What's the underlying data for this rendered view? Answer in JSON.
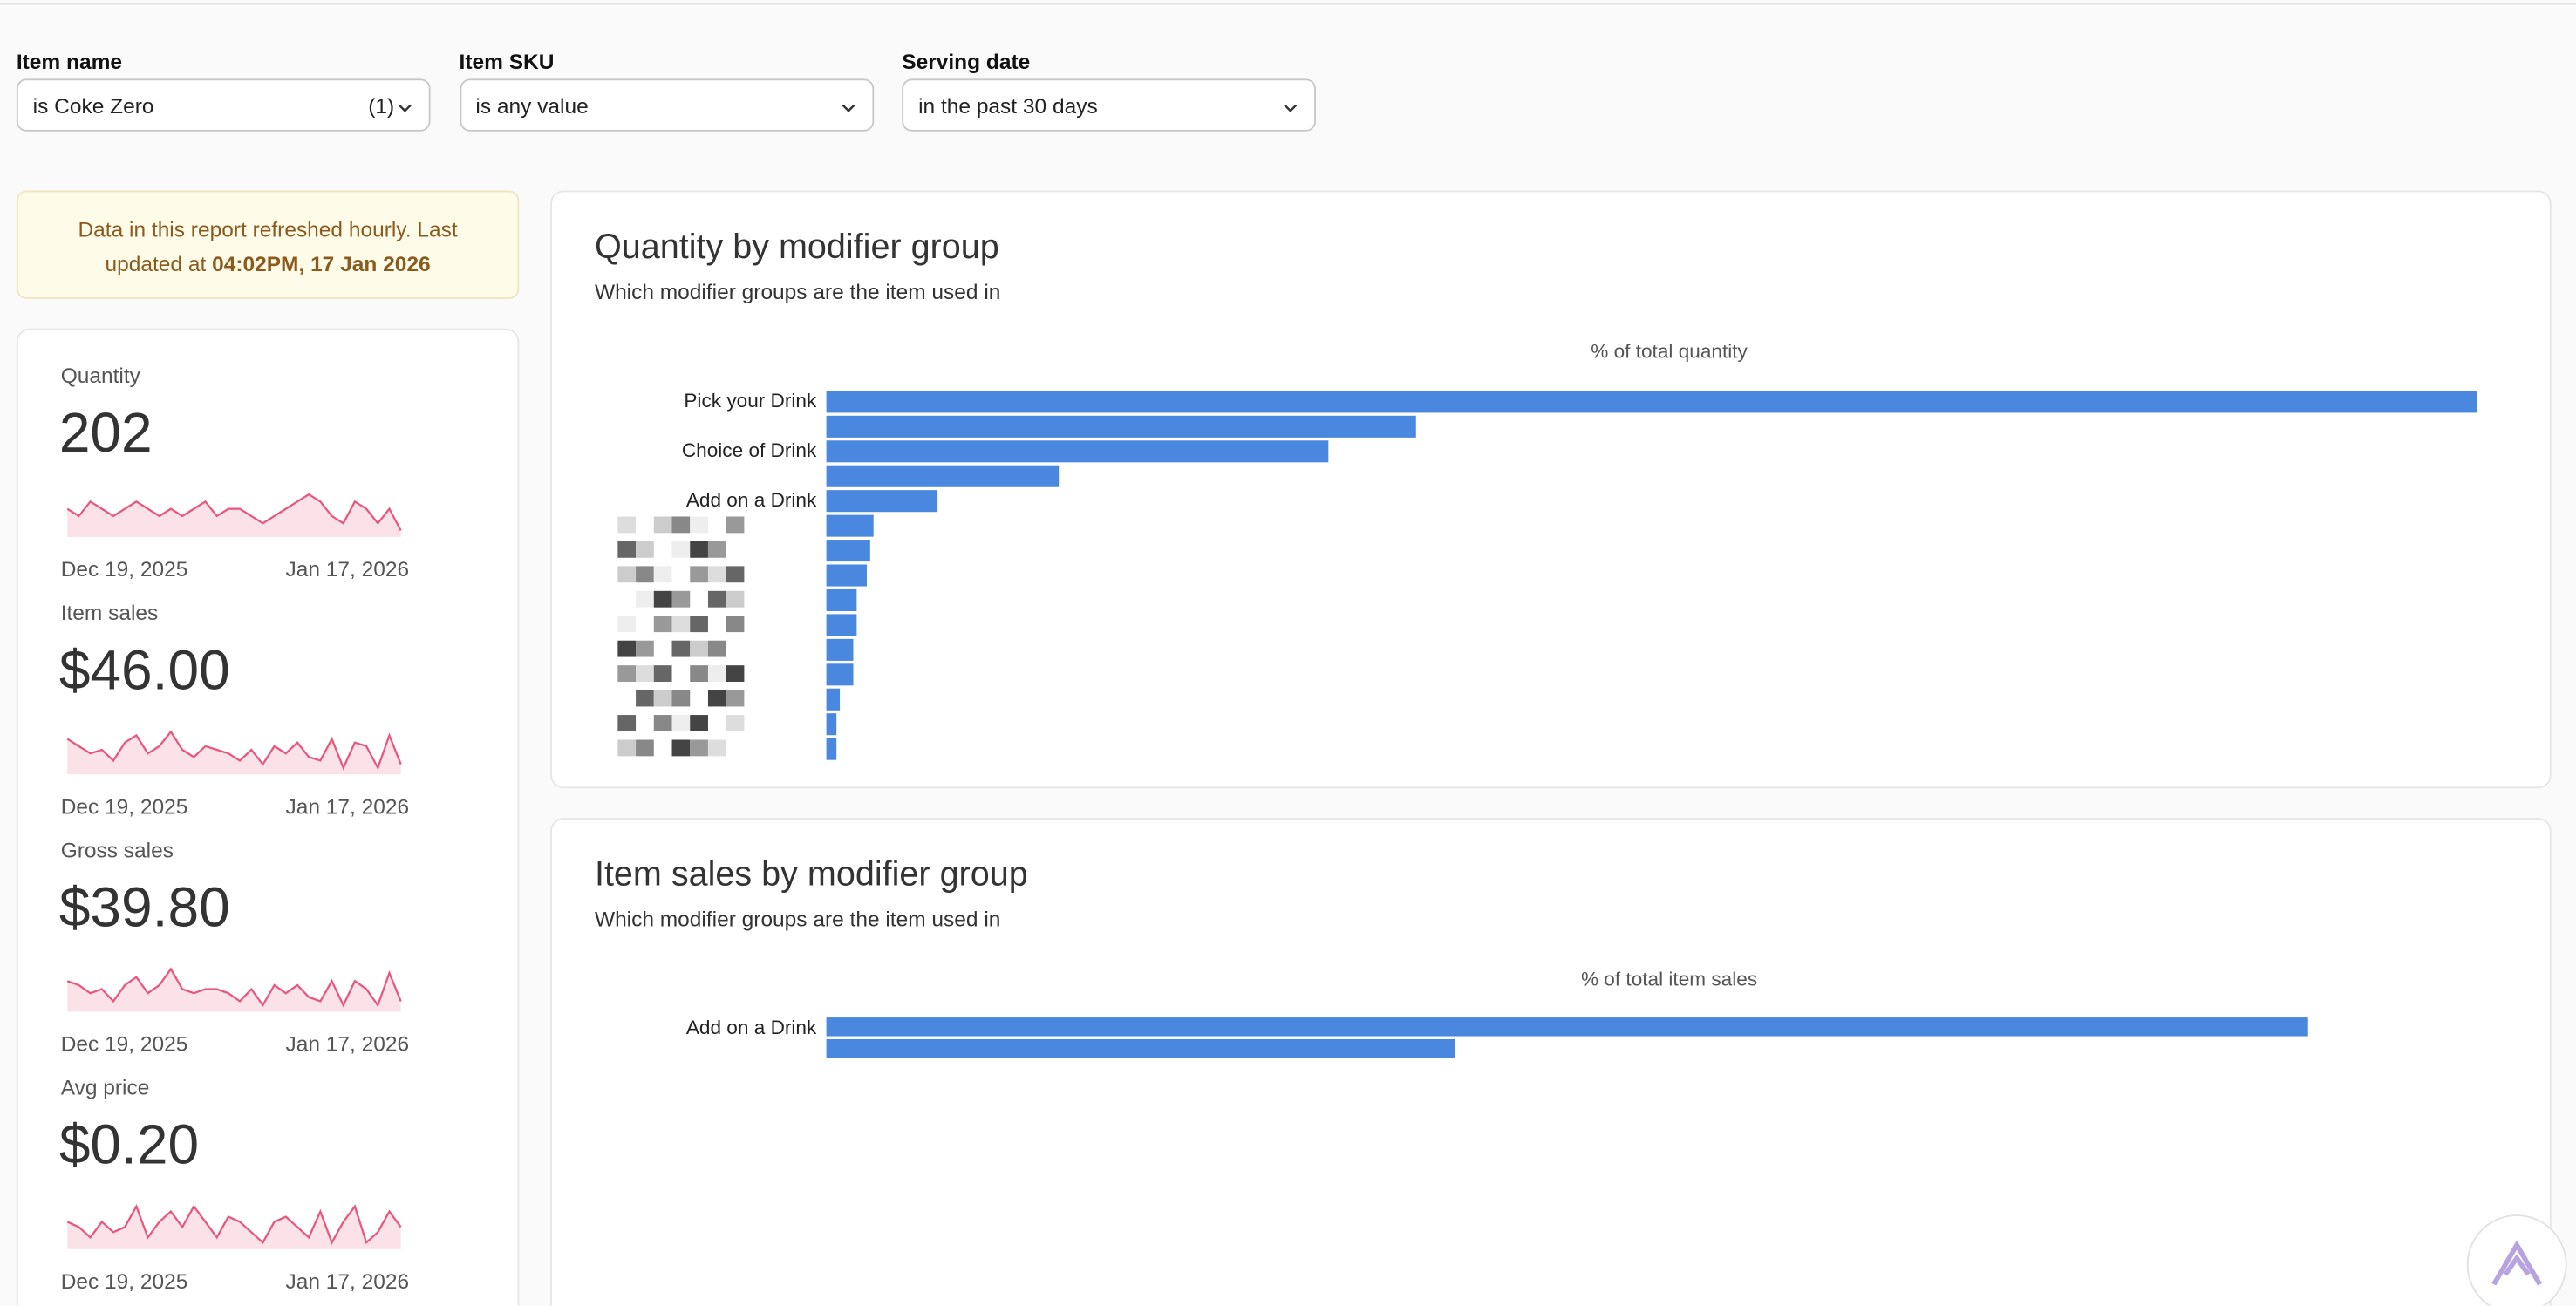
{
  "filters": [
    {
      "label": "Item name",
      "value": "is Coke Zero",
      "count": "(1)"
    },
    {
      "label": "Item SKU",
      "value": "is any value"
    },
    {
      "label": "Serving date",
      "value": "in the past 30 days"
    }
  ],
  "notice": {
    "text": "Data in this report refreshed hourly. Last updated at ",
    "time": "04:02PM, 17 Jan 2026"
  },
  "metrics": [
    {
      "label": "Quantity",
      "value": "202",
      "start": "Dec 19, 2025",
      "end": "Jan 17, 2026",
      "trend": [
        7,
        6,
        8,
        7,
        6,
        7,
        8,
        7,
        6,
        7,
        6,
        7,
        8,
        6,
        7,
        7,
        6,
        5,
        6,
        7,
        8,
        9,
        8,
        6,
        5,
        8,
        7,
        5,
        7,
        4
      ]
    },
    {
      "label": "Item sales",
      "value": "$46.00",
      "start": "Dec 19, 2025",
      "end": "Jan 17, 2026",
      "trend": [
        1.8,
        1.6,
        1.4,
        1.5,
        1.2,
        1.7,
        1.9,
        1.4,
        1.6,
        2.0,
        1.5,
        1.3,
        1.6,
        1.5,
        1.4,
        1.2,
        1.5,
        1.1,
        1.6,
        1.4,
        1.7,
        1.3,
        1.2,
        1.8,
        1.0,
        1.7,
        1.6,
        1.0,
        1.9,
        1.1
      ]
    },
    {
      "label": "Gross sales",
      "value": "$39.80",
      "start": "Dec 19, 2025",
      "end": "Jan 17, 2026",
      "trend": [
        1.5,
        1.4,
        1.2,
        1.3,
        1.0,
        1.4,
        1.6,
        1.2,
        1.4,
        1.8,
        1.3,
        1.2,
        1.3,
        1.3,
        1.2,
        1.0,
        1.3,
        0.9,
        1.4,
        1.2,
        1.4,
        1.1,
        1.0,
        1.5,
        0.9,
        1.5,
        1.3,
        0.9,
        1.7,
        1.0
      ]
    },
    {
      "label": "Avg price",
      "value": "$0.20",
      "start": "Dec 19, 2025",
      "end": "Jan 17, 2026",
      "trend": [
        0.21,
        0.2,
        0.18,
        0.21,
        0.19,
        0.2,
        0.24,
        0.18,
        0.21,
        0.23,
        0.2,
        0.24,
        0.21,
        0.18,
        0.22,
        0.21,
        0.19,
        0.17,
        0.21,
        0.22,
        0.2,
        0.18,
        0.23,
        0.17,
        0.21,
        0.24,
        0.17,
        0.19,
        0.23,
        0.2
      ]
    }
  ],
  "charts": [
    {
      "type": "bar",
      "title": "Quantity by modifier group",
      "subtitle": "Which modifier groups are the item used in",
      "axis_label": "% of total quantity",
      "color": "#4a87df",
      "xlim": [
        0,
        49
      ],
      "categories": [
        "Pick your Drink",
        null,
        "Choice of Drink",
        null,
        "Add on a Drink",
        null,
        null,
        null,
        null,
        null,
        null,
        null,
        null,
        null,
        null
      ],
      "values": [
        49,
        17.5,
        14.9,
        6.9,
        3.3,
        1.4,
        1.3,
        1.2,
        0.9,
        0.9,
        0.8,
        0.8,
        0.4,
        0.3,
        0.3
      ]
    },
    {
      "type": "bar",
      "title": "Item sales by modifier group",
      "subtitle": "Which modifier groups are the item used in",
      "axis_label": "% of total item sales",
      "color": "#4a87df",
      "xlim": [
        0,
        78
      ],
      "categories": [
        "Add on a Drink",
        null
      ],
      "values": [
        70,
        29.7
      ]
    }
  ]
}
